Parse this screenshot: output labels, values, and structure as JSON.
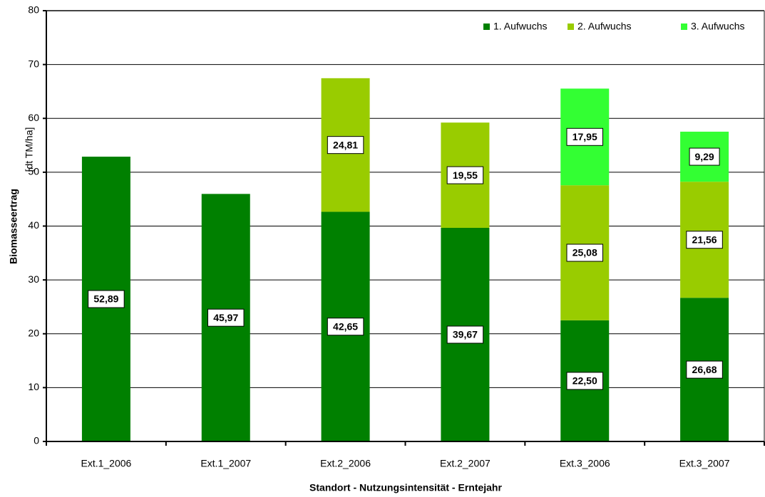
{
  "chart_data": {
    "type": "stacked-bar",
    "y_label": "Biomasseertrag",
    "y_unit": "[dt TM/ha]",
    "x_label": "Standort - Nutzungsintensität - Erntejahr",
    "categories": [
      "Ext.1_2006",
      "Ext.1_2007",
      "Ext.2_2006",
      "Ext.2_2007",
      "Ext.3_2006",
      "Ext.3_2007"
    ],
    "series": [
      {
        "name": "1. Aufwuchs",
        "color": "#008000",
        "values": [
          52.89,
          45.97,
          42.65,
          39.67,
          22.5,
          26.68
        ],
        "value_labels": [
          "52,89",
          "45,97",
          "42,65",
          "39,67",
          "22,50",
          "26,68"
        ]
      },
      {
        "name": "2. Aufwuchs",
        "color": "#99cc00",
        "values": [
          null,
          null,
          24.81,
          19.55,
          25.08,
          21.56
        ],
        "value_labels": [
          null,
          null,
          "24,81",
          "19,55",
          "25,08",
          "21,56"
        ]
      },
      {
        "name": "3. Aufwuchs",
        "color": "#33ff33",
        "values": [
          null,
          null,
          null,
          null,
          17.95,
          9.29
        ],
        "value_labels": [
          null,
          null,
          null,
          null,
          "17,95",
          "9,29"
        ]
      }
    ],
    "ylim": [
      0,
      80
    ],
    "yticks": [
      0,
      10,
      20,
      30,
      40,
      50,
      60,
      70,
      80
    ],
    "grid": true,
    "legend": "top-right"
  }
}
